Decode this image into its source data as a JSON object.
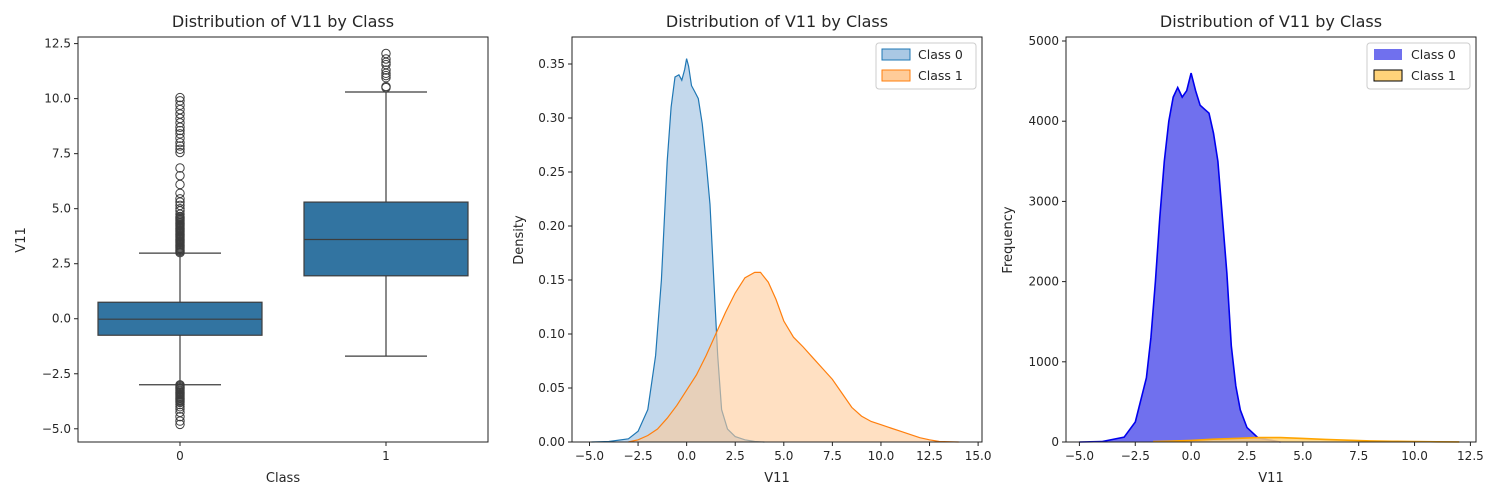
{
  "chart_data": [
    {
      "type": "box",
      "title": "Distribution of V11 by Class",
      "xlabel": "Class",
      "ylabel": "V11",
      "ylim": [
        -5.6,
        12.8
      ],
      "yticks": [
        -5.0,
        -2.5,
        0.0,
        2.5,
        5.0,
        7.5,
        10.0,
        12.5
      ],
      "ytick_labels": [
        "−5.0",
        "−2.5",
        "0.0",
        "2.5",
        "5.0",
        "7.5",
        "10.0",
        "12.5"
      ],
      "categories": [
        "0",
        "1"
      ],
      "color": "#3274a1",
      "boxes": [
        {
          "category": "0",
          "whisker_low": -3.0,
          "q1": -0.75,
          "median": -0.02,
          "q3": 0.75,
          "whisker_high": 2.98,
          "outliers": [
            3.0,
            3.05,
            3.1,
            3.15,
            3.2,
            3.25,
            3.3,
            3.35,
            3.4,
            3.45,
            3.5,
            3.55,
            3.6,
            3.65,
            3.7,
            3.75,
            3.8,
            3.85,
            3.9,
            3.95,
            4.0,
            4.05,
            4.1,
            4.15,
            4.2,
            4.25,
            4.3,
            4.35,
            4.4,
            4.45,
            4.5,
            4.55,
            4.6,
            4.65,
            4.75,
            4.9,
            5.0,
            5.15,
            5.3,
            5.45,
            5.7,
            6.1,
            6.5,
            6.85,
            7.55,
            7.7,
            7.85,
            8.0,
            8.2,
            8.4,
            8.55,
            8.7,
            8.9,
            9.1,
            9.3,
            9.5,
            9.7,
            9.9,
            10.05,
            -3.0,
            -3.05,
            -3.1,
            -3.15,
            -3.2,
            -3.25,
            -3.3,
            -3.35,
            -3.4,
            -3.45,
            -3.5,
            -3.55,
            -3.6,
            -3.65,
            -3.7,
            -3.75,
            -3.8,
            -3.9,
            -4.0,
            -4.1,
            -4.25,
            -4.45,
            -4.65,
            -4.8
          ]
        },
        {
          "category": "1",
          "whisker_low": -1.7,
          "q1": 1.95,
          "median": 3.6,
          "q3": 5.3,
          "whisker_high": 10.3,
          "outliers": [
            10.5,
            10.55,
            10.95,
            11.05,
            11.15,
            11.3,
            11.55,
            11.65,
            11.8,
            12.05
          ]
        }
      ]
    },
    {
      "type": "area",
      "title": "Distribution of V11 by Class",
      "xlabel": "V11",
      "ylabel": "Density",
      "xlim": [
        -5.9,
        15.2
      ],
      "ylim": [
        0,
        0.375
      ],
      "xticks": [
        -5.0,
        -2.5,
        0.0,
        2.5,
        5.0,
        7.5,
        10.0,
        12.5,
        15.0
      ],
      "xtick_labels": [
        "−5.0",
        "−2.5",
        "0.0",
        "2.5",
        "5.0",
        "7.5",
        "10.0",
        "12.5",
        "15.0"
      ],
      "yticks": [
        0.0,
        0.05,
        0.1,
        0.15,
        0.2,
        0.25,
        0.3,
        0.35
      ],
      "ytick_labels": [
        "0.00",
        "0.05",
        "0.10",
        "0.15",
        "0.20",
        "0.25",
        "0.30",
        "0.35"
      ],
      "legend": "top-right",
      "series": [
        {
          "name": "Class 0",
          "line_color": "#1f77b4",
          "fill_color": "#aac8e4",
          "x": [
            -4.9,
            -4.0,
            -3.0,
            -2.5,
            -2.0,
            -1.6,
            -1.3,
            -1.0,
            -0.8,
            -0.6,
            -0.4,
            -0.25,
            -0.1,
            0.0,
            0.1,
            0.25,
            0.4,
            0.6,
            0.8,
            1.0,
            1.2,
            1.4,
            1.6,
            1.8,
            2.1,
            2.5,
            3.0,
            3.5,
            4.0
          ],
          "y": [
            0.0,
            0.0005,
            0.003,
            0.01,
            0.03,
            0.08,
            0.15,
            0.26,
            0.31,
            0.338,
            0.34,
            0.335,
            0.345,
            0.355,
            0.348,
            0.33,
            0.325,
            0.318,
            0.295,
            0.26,
            0.22,
            0.15,
            0.08,
            0.03,
            0.012,
            0.005,
            0.002,
            0.0005,
            0.0
          ]
        },
        {
          "name": "Class 1",
          "line_color": "#ff7f0e",
          "fill_color": "#ffcc99",
          "x": [
            -3.0,
            -2.5,
            -2.0,
            -1.5,
            -1.0,
            -0.5,
            0.0,
            0.5,
            1.0,
            1.5,
            2.0,
            2.5,
            3.0,
            3.5,
            3.8,
            4.2,
            4.6,
            5.0,
            5.5,
            6.0,
            6.5,
            7.0,
            7.5,
            8.0,
            8.5,
            9.0,
            9.5,
            10.0,
            10.5,
            11.0,
            11.5,
            12.0,
            12.5,
            13.0,
            14.0
          ],
          "y": [
            0.0,
            0.002,
            0.006,
            0.012,
            0.022,
            0.034,
            0.048,
            0.062,
            0.08,
            0.1,
            0.12,
            0.138,
            0.152,
            0.157,
            0.157,
            0.148,
            0.132,
            0.112,
            0.097,
            0.088,
            0.078,
            0.068,
            0.058,
            0.045,
            0.032,
            0.024,
            0.019,
            0.016,
            0.013,
            0.01,
            0.007,
            0.004,
            0.002,
            0.0005,
            0.0
          ]
        }
      ]
    },
    {
      "type": "histogram",
      "title": "Distribution of V11 by Class",
      "xlabel": "V11",
      "ylabel": "Frequency",
      "xlim": [
        -5.6,
        12.75
      ],
      "ylim": [
        0,
        5050
      ],
      "xticks": [
        -5.0,
        -2.5,
        0.0,
        2.5,
        5.0,
        7.5,
        10.0,
        12.5
      ],
      "xtick_labels": [
        "−5.0",
        "−2.5",
        "0.0",
        "2.5",
        "5.0",
        "7.5",
        "10.0",
        "12.5"
      ],
      "yticks": [
        0,
        1000,
        2000,
        3000,
        4000,
        5000
      ],
      "ytick_labels": [
        "0",
        "1000",
        "2000",
        "3000",
        "4000",
        "5000"
      ],
      "legend": "top-right",
      "series": [
        {
          "name": "Class 0",
          "fill_color": "#7070ee",
          "line_color": "#0000ee",
          "x": [
            -5.0,
            -4.0,
            -3.0,
            -2.5,
            -2.0,
            -1.8,
            -1.6,
            -1.4,
            -1.2,
            -1.0,
            -0.8,
            -0.6,
            -0.4,
            -0.2,
            0.0,
            0.2,
            0.4,
            0.6,
            0.8,
            1.0,
            1.2,
            1.4,
            1.6,
            1.8,
            2.0,
            2.2,
            2.5,
            3.0,
            4.0
          ],
          "y": [
            0,
            5,
            60,
            250,
            800,
            1300,
            2000,
            2800,
            3500,
            4000,
            4300,
            4420,
            4300,
            4380,
            4600,
            4380,
            4200,
            4150,
            4100,
            3850,
            3500,
            2800,
            2100,
            1200,
            700,
            400,
            180,
            50,
            0
          ]
        },
        {
          "name": "Class 1",
          "fill_color": "#ffd37a",
          "line_color": "#ffa500",
          "x": [
            -1.7,
            -1.0,
            0.0,
            1.0,
            2.0,
            3.0,
            4.0,
            5.0,
            6.0,
            7.0,
            8.0,
            9.0,
            10.0,
            11.0,
            12.0
          ],
          "y": [
            5,
            10,
            20,
            35,
            45,
            55,
            55,
            45,
            32,
            22,
            14,
            9,
            6,
            3,
            1
          ]
        }
      ]
    }
  ]
}
